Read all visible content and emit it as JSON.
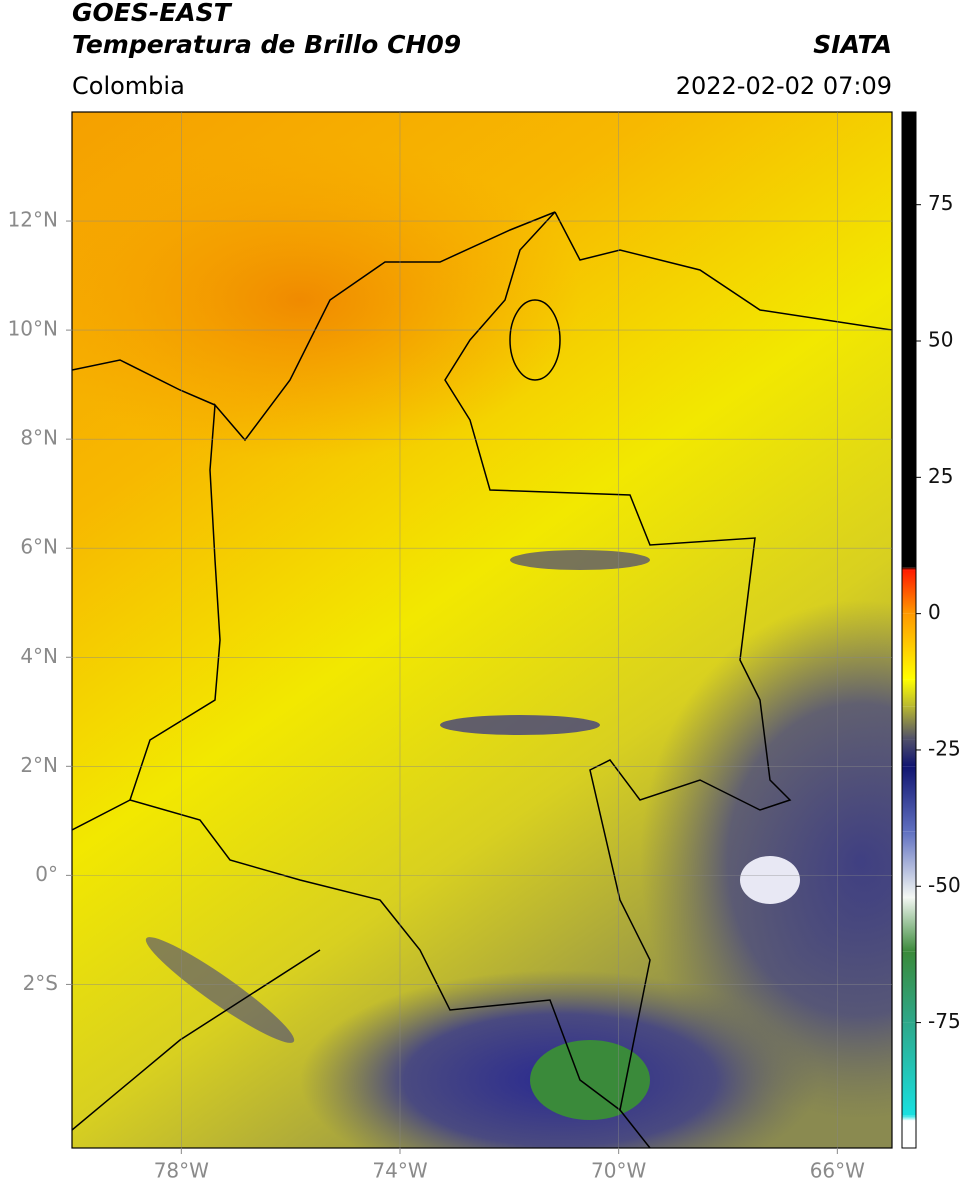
{
  "header": {
    "title": "GOES-EAST",
    "subtitle": "Temperatura de Brillo CH09",
    "region": "Colombia",
    "source": "SIATA",
    "datetime": "2022-02-02 07:09"
  },
  "map": {
    "xlim": [
      -80,
      -65
    ],
    "ylim": [
      -5,
      14
    ],
    "xticks": [
      {
        "value": -78,
        "label": "78°W"
      },
      {
        "value": -74,
        "label": "74°W"
      },
      {
        "value": -70,
        "label": "70°W"
      },
      {
        "value": -66,
        "label": "66°W"
      }
    ],
    "yticks": [
      {
        "value": -2,
        "label": "2°S"
      },
      {
        "value": 0,
        "label": "0°"
      },
      {
        "value": 2,
        "label": "2°N"
      },
      {
        "value": 4,
        "label": "4°N"
      },
      {
        "value": 6,
        "label": "6°N"
      },
      {
        "value": 8,
        "label": "8°N"
      },
      {
        "value": 10,
        "label": "10°N"
      },
      {
        "value": 12,
        "label": "12°N"
      }
    ],
    "grid": true
  },
  "colorbar": {
    "clim": [
      -98,
      92
    ],
    "ticks": [
      -75,
      -50,
      -25,
      0,
      25,
      50,
      75
    ],
    "stops": [
      {
        "value": -98,
        "color": "#ffffff"
      },
      {
        "value": -93,
        "color": "#ffffff"
      },
      {
        "value": -92,
        "color": "#19e0e0"
      },
      {
        "value": -75,
        "color": "#2ea88a"
      },
      {
        "value": -62,
        "color": "#3a8a3a"
      },
      {
        "value": -52,
        "color": "#f4f8f4"
      },
      {
        "value": -40,
        "color": "#6070c0"
      },
      {
        "value": -28,
        "color": "#101470"
      },
      {
        "value": -23,
        "color": "#50506a"
      },
      {
        "value": -17,
        "color": "#b8b830"
      },
      {
        "value": -12,
        "color": "#ffff00"
      },
      {
        "value": 0,
        "color": "#ff9900"
      },
      {
        "value": 8,
        "color": "#ff1a00"
      },
      {
        "value": 8.5,
        "color": "#000000"
      },
      {
        "value": 92,
        "color": "#000000"
      }
    ]
  }
}
